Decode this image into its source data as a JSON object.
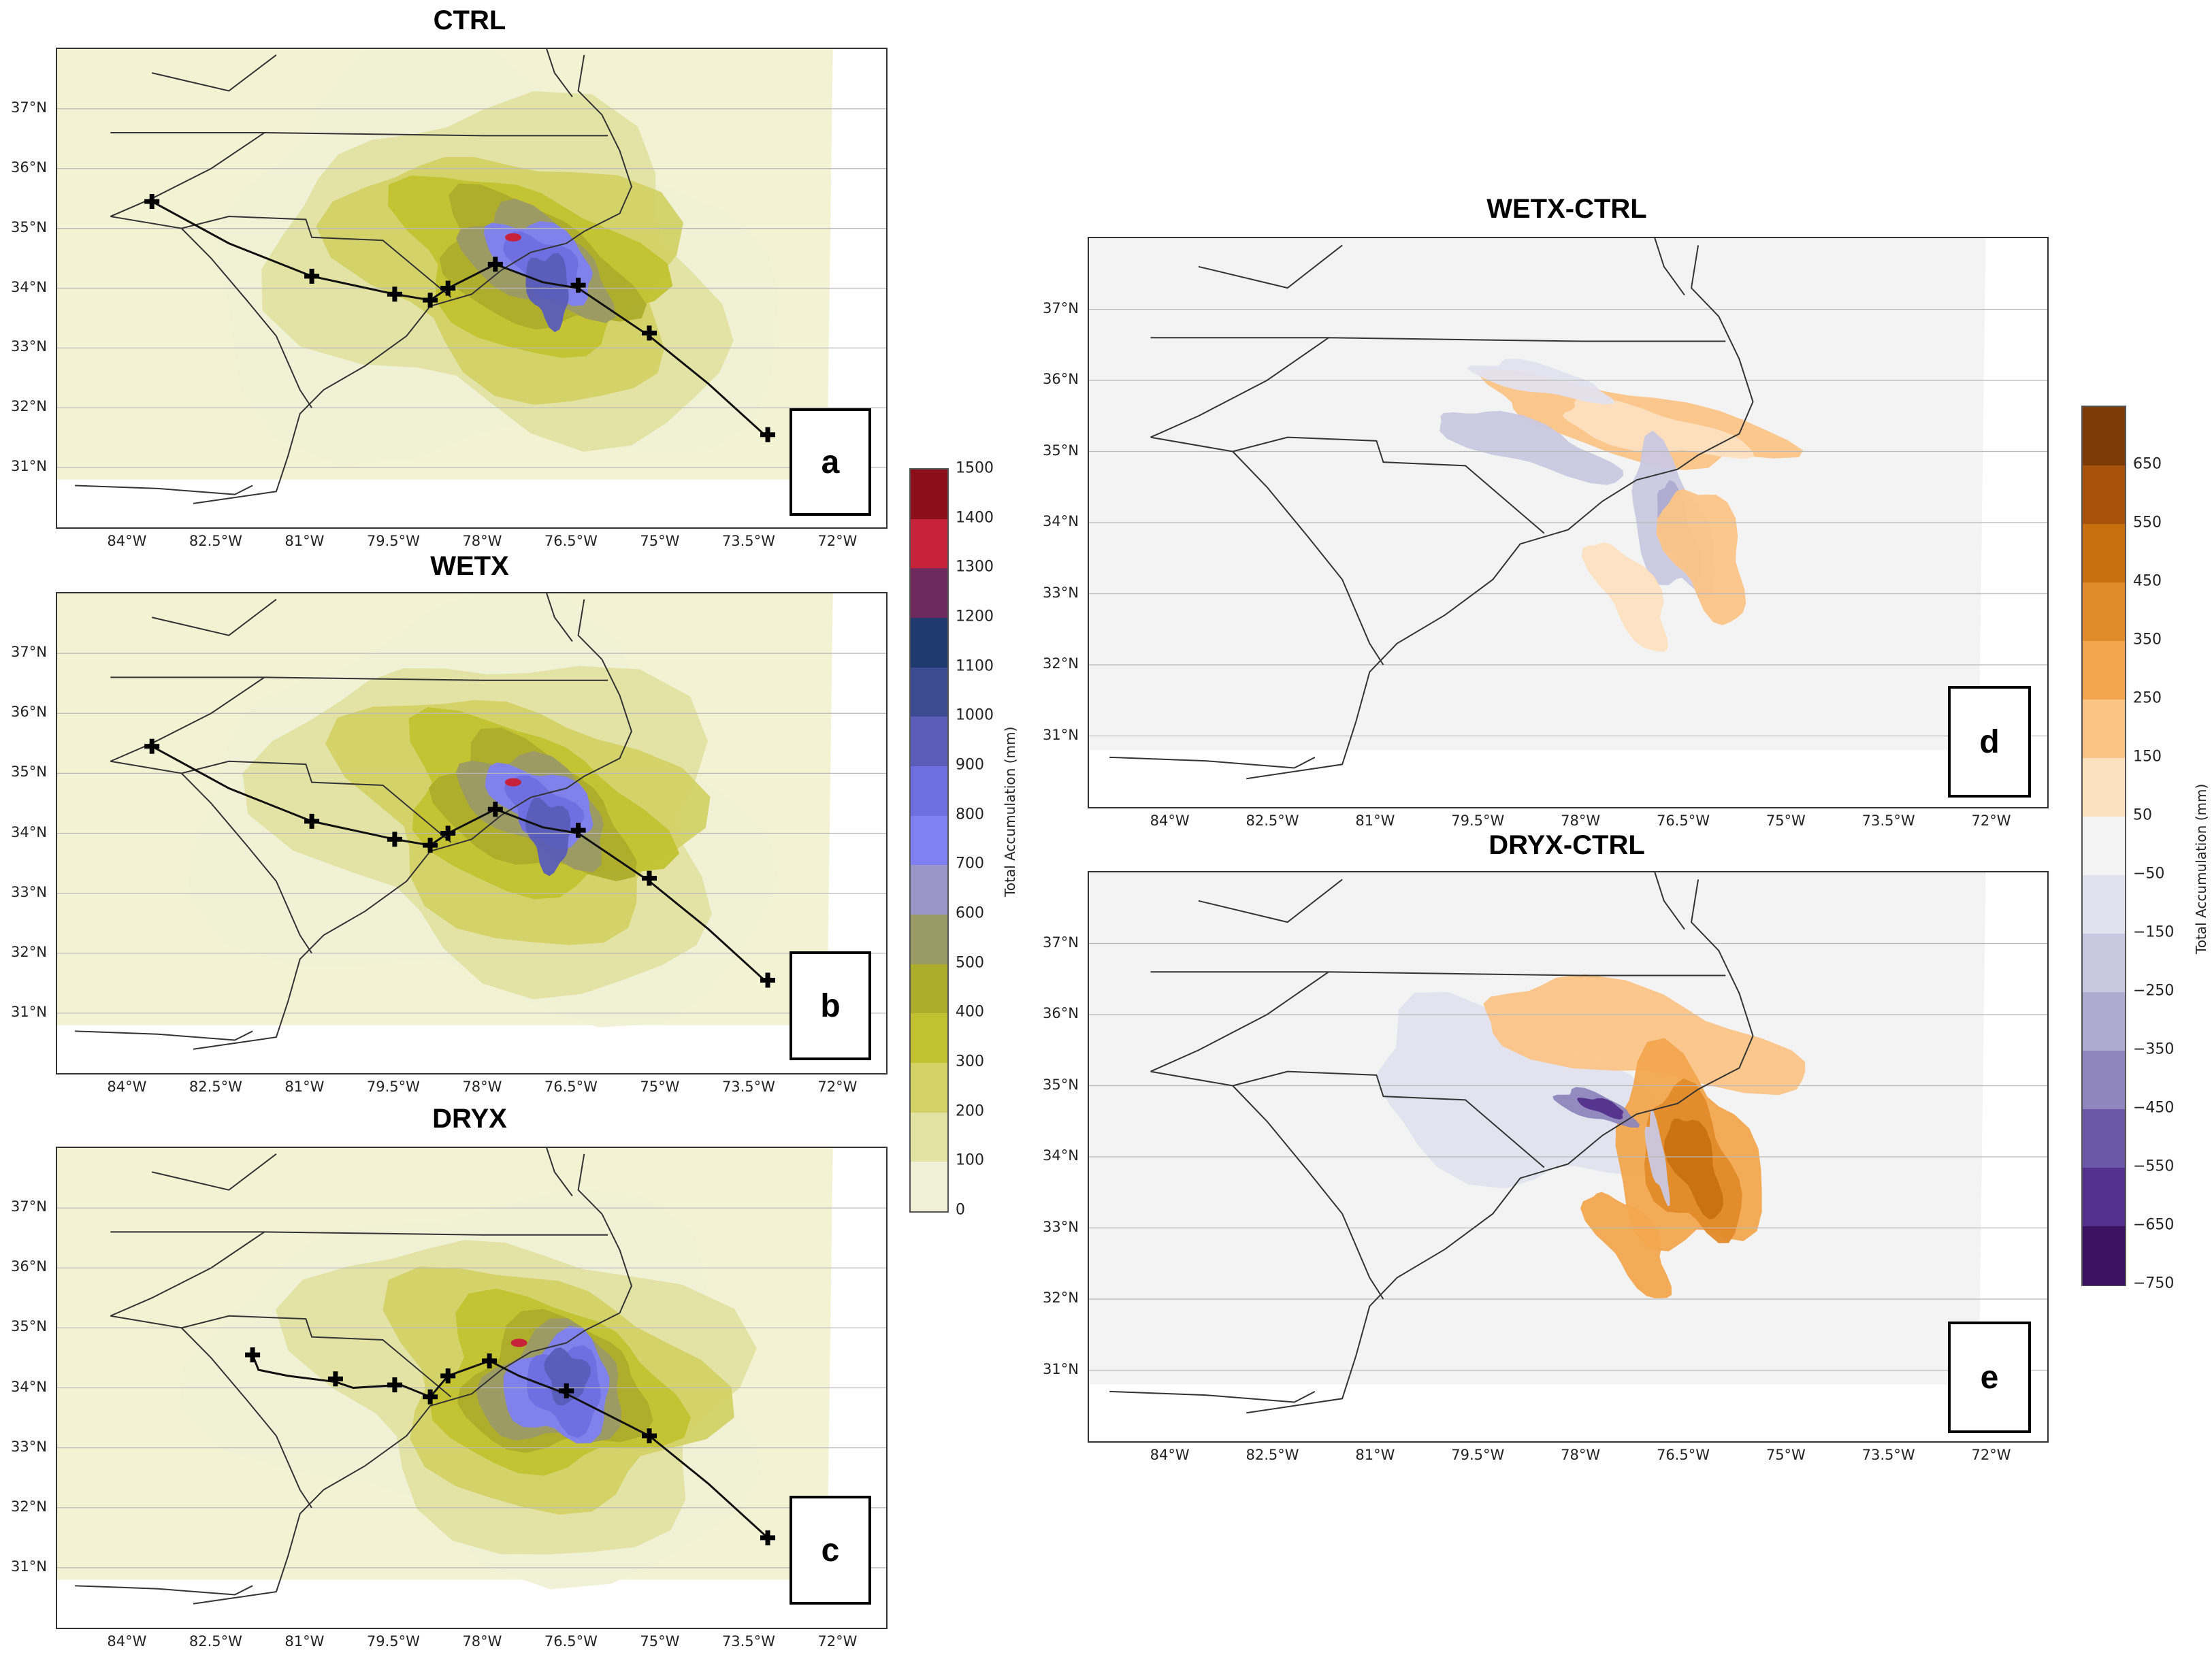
{
  "figure": {
    "lat_labels": [
      "37°N",
      "36°N",
      "35°N",
      "34°N",
      "33°N",
      "32°N",
      "31°N"
    ],
    "lon_labels": [
      "84°W",
      "82.5°W",
      "81°W",
      "79.5°W",
      "78°W",
      "76.5°W",
      "75°W",
      "73.5°W",
      "72°W"
    ],
    "panels": [
      {
        "id": "a",
        "title": "CTRL",
        "letter": "a",
        "type": "accum",
        "track": "full"
      },
      {
        "id": "b",
        "title": "WETX",
        "letter": "b",
        "type": "accum",
        "track": "full"
      },
      {
        "id": "c",
        "title": "DRYX",
        "letter": "c",
        "type": "accum",
        "track": "short"
      },
      {
        "id": "d",
        "title": "WETX-CTRL",
        "letter": "d",
        "type": "diff",
        "variant": "wet"
      },
      {
        "id": "e",
        "title": "DRYX-CTRL",
        "letter": "e",
        "type": "diff",
        "variant": "dry"
      }
    ],
    "colorbar_accum": {
      "label": "Total Accumulation (mm)",
      "ticks": [
        "1500",
        "1400",
        "1300",
        "1200",
        "1100",
        "1000",
        "900",
        "800",
        "700",
        "600",
        "500",
        "400",
        "300",
        "200",
        "100",
        "0"
      ],
      "colors": [
        "#8b0f1a",
        "#c8213a",
        "#6e2a5c",
        "#1e3a6e",
        "#3c4a92",
        "#5a5cb8",
        "#6e6ee0",
        "#8080f2",
        "#9a96c8",
        "#9a9a66",
        "#adad2c",
        "#c2c230",
        "#d2d266",
        "#e2e2a2",
        "#f0f0d6"
      ]
    },
    "colorbar_diff": {
      "label": "Total Accumulation (mm)",
      "ticks": [
        "650",
        "550",
        "450",
        "350",
        "250",
        "150",
        "50",
        "−50",
        "−150",
        "−250",
        "−350",
        "−450",
        "−550",
        "−650",
        "−750"
      ],
      "colors": [
        "#7b3a06",
        "#a6520a",
        "#c8700f",
        "#e08a2a",
        "#f2a64e",
        "#fbc487",
        "#fde0c0",
        "#f4f4f4",
        "#e2e2ee",
        "#cac8e0",
        "#aeaad0",
        "#8e86bc",
        "#6c56a6",
        "#52308c",
        "#3a1260"
      ]
    },
    "track_points_full": [
      "35.45°N 83.6°W",
      "34.2°N 80.9°W",
      "33.9°N 79.5°W",
      "33.8°N 78.9°W",
      "34.0°N 78.6°W",
      "34.4°N 77.8°W",
      "34.0°N 76.4°W",
      "33.2°N 75.2°W",
      "31.5°N 73.2°W"
    ]
  }
}
